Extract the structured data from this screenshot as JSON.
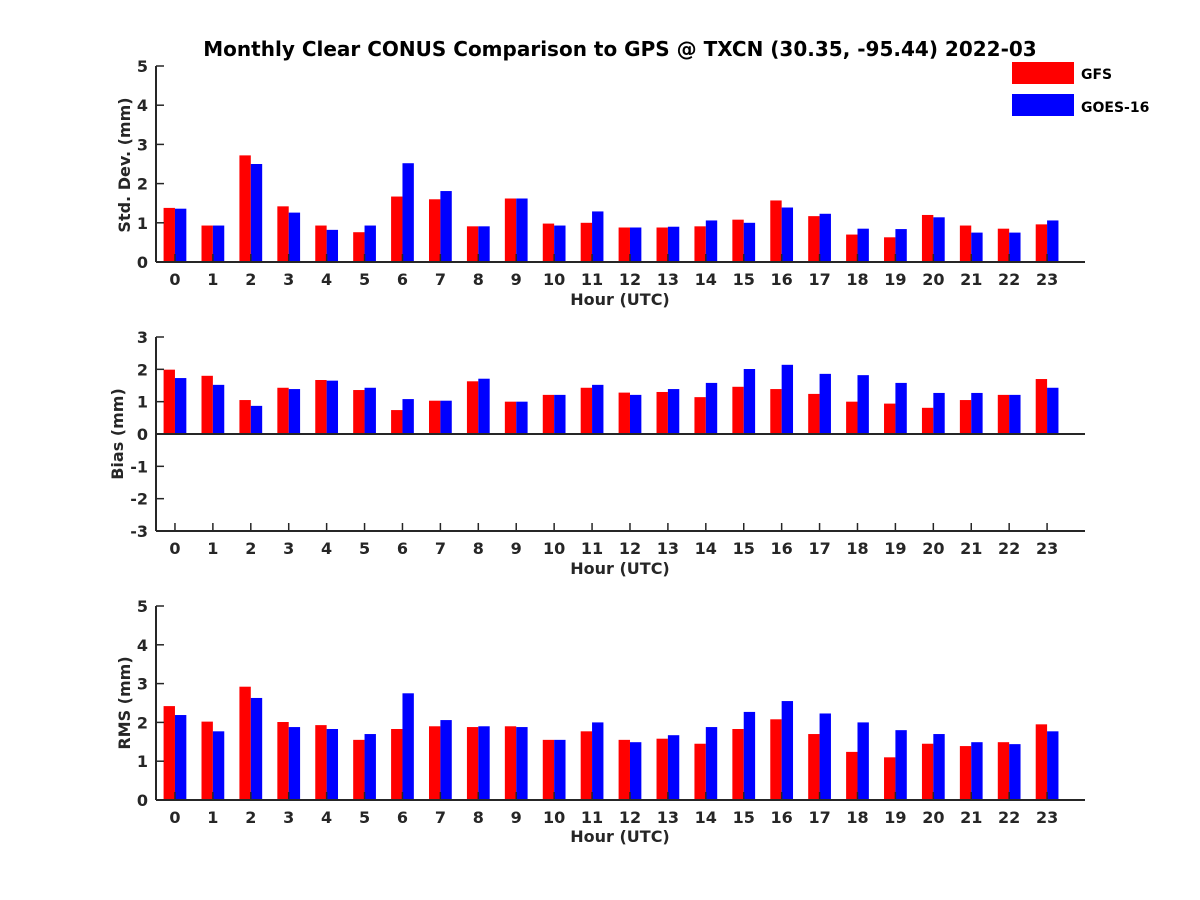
{
  "title": "Monthly Clear CONUS Comparison to GPS @ TXCN (30.35, -95.44) 2022-03",
  "colors": {
    "GFS": "#ff0000",
    "GOES-16": "#0000ff",
    "axis": "#262626"
  },
  "legend": {
    "placement": "top-right",
    "items": [
      {
        "label": "GFS",
        "color": "#ff0000"
      },
      {
        "label": "GOES-16",
        "color": "#0000ff"
      }
    ]
  },
  "chart_data": [
    {
      "type": "bar",
      "xlabel": "Hour (UTC)",
      "ylabel": "Std. Dev. (mm)",
      "ylim": [
        0,
        5
      ],
      "yticks": [
        0,
        1,
        2,
        3,
        4,
        5
      ],
      "categories": [
        "0",
        "1",
        "2",
        "3",
        "4",
        "5",
        "6",
        "7",
        "8",
        "9",
        "10",
        "11",
        "12",
        "13",
        "14",
        "15",
        "16",
        "17",
        "18",
        "19",
        "20",
        "21",
        "22",
        "23"
      ],
      "series": [
        {
          "name": "GFS",
          "values": [
            1.38,
            0.93,
            2.72,
            1.42,
            0.93,
            0.76,
            1.67,
            1.6,
            0.91,
            1.62,
            0.98,
            1.0,
            0.88,
            0.88,
            0.91,
            1.08,
            1.57,
            1.17,
            0.7,
            0.63,
            1.2,
            0.93,
            0.85,
            0.96
          ]
        },
        {
          "name": "GOES-16",
          "values": [
            1.36,
            0.93,
            2.5,
            1.26,
            0.82,
            0.93,
            2.52,
            1.81,
            0.91,
            1.62,
            0.93,
            1.29,
            0.88,
            0.9,
            1.06,
            1.0,
            1.39,
            1.23,
            0.85,
            0.84,
            1.14,
            0.75,
            0.75,
            1.06
          ]
        }
      ]
    },
    {
      "type": "bar",
      "xlabel": "Hour (UTC)",
      "ylabel": "Bias (mm)",
      "ylim": [
        -3,
        3
      ],
      "yticks": [
        -3,
        -2,
        -1,
        0,
        1,
        2,
        3
      ],
      "categories": [
        "0",
        "1",
        "2",
        "3",
        "4",
        "5",
        "6",
        "7",
        "8",
        "9",
        "10",
        "11",
        "12",
        "13",
        "14",
        "15",
        "16",
        "17",
        "18",
        "19",
        "20",
        "21",
        "22",
        "23"
      ],
      "series": [
        {
          "name": "GFS",
          "values": [
            1.99,
            1.8,
            1.05,
            1.43,
            1.67,
            1.36,
            0.74,
            1.03,
            1.63,
            1.0,
            1.21,
            1.43,
            1.28,
            1.3,
            1.14,
            1.46,
            1.39,
            1.24,
            1.0,
            0.94,
            0.81,
            1.05,
            1.21,
            1.7
          ]
        },
        {
          "name": "GOES-16",
          "values": [
            1.73,
            1.52,
            0.87,
            1.39,
            1.65,
            1.43,
            1.08,
            1.03,
            1.71,
            1.0,
            1.21,
            1.52,
            1.21,
            1.39,
            1.58,
            2.01,
            2.14,
            1.86,
            1.82,
            1.58,
            1.27,
            1.27,
            1.21,
            1.43
          ]
        }
      ]
    },
    {
      "type": "bar",
      "xlabel": "Hour (UTC)",
      "ylabel": "RMS (mm)",
      "ylim": [
        0,
        5
      ],
      "yticks": [
        0,
        1,
        2,
        3,
        4,
        5
      ],
      "categories": [
        "0",
        "1",
        "2",
        "3",
        "4",
        "5",
        "6",
        "7",
        "8",
        "9",
        "10",
        "11",
        "12",
        "13",
        "14",
        "15",
        "16",
        "17",
        "18",
        "19",
        "20",
        "21",
        "22",
        "23"
      ],
      "series": [
        {
          "name": "GFS",
          "values": [
            2.42,
            2.02,
            2.92,
            2.01,
            1.93,
            1.55,
            1.83,
            1.9,
            1.88,
            1.9,
            1.55,
            1.77,
            1.55,
            1.58,
            1.45,
            1.83,
            2.08,
            1.7,
            1.24,
            1.1,
            1.45,
            1.39,
            1.49,
            1.95
          ]
        },
        {
          "name": "GOES-16",
          "values": [
            2.19,
            1.77,
            2.63,
            1.88,
            1.83,
            1.7,
            2.75,
            2.06,
            1.9,
            1.88,
            1.55,
            2.0,
            1.49,
            1.67,
            1.88,
            2.27,
            2.55,
            2.23,
            2.0,
            1.8,
            1.7,
            1.49,
            1.44,
            1.77
          ]
        }
      ]
    }
  ]
}
